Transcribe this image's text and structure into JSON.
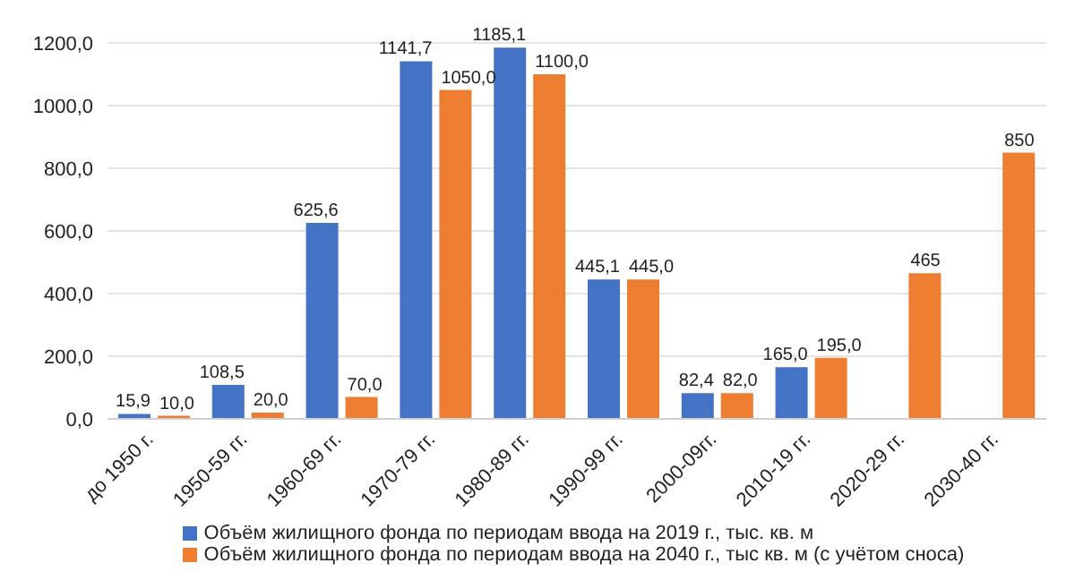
{
  "chart_data": {
    "type": "bar",
    "categories": [
      "до 1950 г.",
      "1950-59 гг.",
      "1960-69 гг.",
      "1970-79 гг.",
      "1980-89 гг.",
      "1990-99 гг.",
      "2000-09гг.",
      "2010-19 гг.",
      "2020-29 гг.",
      "2030-40 гг."
    ],
    "series": [
      {
        "name": "Объём жилищного фонда по периодам ввода на 2019 г., тыс. кв. м",
        "color": "#4472c4",
        "values": [
          15.9,
          108.5,
          625.6,
          1141.7,
          1185.1,
          445.1,
          82.4,
          165.0,
          null,
          null
        ],
        "value_labels": [
          "15,9",
          "108,5",
          "625,6",
          "1141,7",
          "1185,1",
          "445,1",
          "82,4",
          "165,0",
          null,
          null
        ]
      },
      {
        "name": "Объём жилищного фонда по периодам ввода на 2040 г., тыс кв. м (с учётом сноса)",
        "color": "#ed7d31",
        "values": [
          10.0,
          20.0,
          70.0,
          1050.0,
          1100.0,
          445.0,
          82.0,
          195.0,
          465,
          850
        ],
        "value_labels": [
          "10,0",
          "20,0",
          "70,0",
          "1050,0",
          "1100,0",
          "445,0",
          "82,0",
          "195,0",
          "465",
          "850"
        ]
      }
    ],
    "ylim": [
      0,
      1200
    ],
    "yticks": [
      {
        "value": 0,
        "label": "0,0"
      },
      {
        "value": 200,
        "label": "200,0"
      },
      {
        "value": 400,
        "label": "400,0"
      },
      {
        "value": 600,
        "label": "600,0"
      },
      {
        "value": 800,
        "label": "800,0"
      },
      {
        "value": 1000,
        "label": "1000,0"
      },
      {
        "value": 1200,
        "label": "1200,0"
      }
    ],
    "grid": "y",
    "legend": "bottom"
  }
}
